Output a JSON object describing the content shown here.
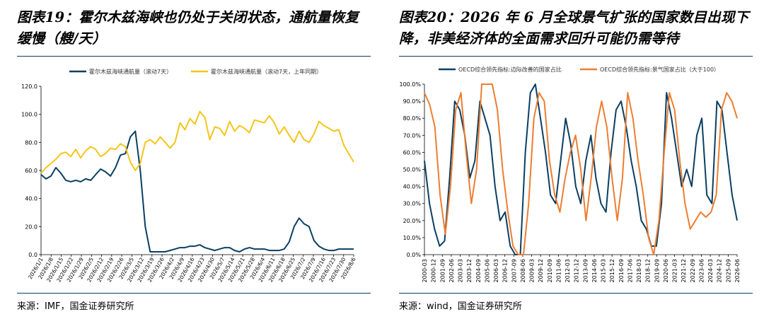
{
  "left": {
    "title_line1": "图表19：霍尔木兹海峡也仍处于关闭状态，通航量恢复",
    "title_line2": "缓慢（艘/天）",
    "source": "来源：IMF，国金证券研究所"
  },
  "right": {
    "title_line1": "图表20：2026 年 6 月全球景气扩张的国家数目出现下",
    "title_line2": "降，非美经济体的全面需求回升可能仍需等待",
    "source": "来源：wind，国金证券研究所"
  },
  "colors": {
    "navy": "#0a3f63",
    "gold": "#f5c518",
    "orange": "#ed7d31"
  },
  "chart_data": [
    {
      "type": "line",
      "ylim": [
        0,
        120
      ],
      "y_ticks": [
        "0.0",
        "20.0",
        "40.0",
        "60.0",
        "80.0",
        "100.0",
        "120.0"
      ],
      "x_ticks": [
        "2026/1/1",
        "2026/1/8",
        "2026/1/15",
        "2026/1/22",
        "2026/1/29",
        "2026/2/5",
        "2026/2/12",
        "2026/2/19",
        "2026/2/26",
        "2026/3/5",
        "2026/3/12",
        "2026/3/19",
        "2026/3/26",
        "2026/4/2",
        "2026/4/9",
        "2026/4/16",
        "2026/4/23",
        "2026/4/30",
        "2026/5/7",
        "2026/5/14",
        "2026/5/21",
        "2026/5/28",
        "2026/6/4",
        "2026/6/11",
        "2026/6/18",
        "2026/6/25",
        "2026/7/2",
        "2026/7/9",
        "2026/7/16",
        "2026/7/23",
        "2026/7/30",
        "2026/8/6"
      ],
      "legend_position": "top",
      "series": [
        {
          "name": "霍尔木兹海峡通航量（滚动7天）",
          "color": "#0a3f63",
          "values": [
            57,
            54,
            56,
            62,
            58,
            53,
            52,
            53,
            52,
            54,
            53,
            57,
            61,
            59,
            56,
            62,
            71,
            72,
            84,
            88,
            60,
            20,
            2,
            2,
            2,
            2,
            3,
            4,
            5,
            5,
            6,
            6,
            7,
            5,
            4,
            3,
            4,
            5,
            5,
            3,
            2,
            4,
            5,
            4,
            4,
            4,
            3,
            3,
            3,
            4,
            9,
            20,
            26,
            22,
            20,
            10,
            6,
            4,
            3,
            3,
            4,
            4,
            4,
            4
          ]
        },
        {
          "name": "霍尔木兹海峡通航量（滚动7天，上年同期）",
          "color": "#f5c518",
          "values": [
            58,
            62,
            65,
            68,
            72,
            73,
            70,
            75,
            69,
            74,
            77,
            75,
            70,
            72,
            76,
            75,
            79,
            77,
            66,
            60,
            65,
            80,
            82,
            79,
            84,
            80,
            76,
            80,
            94,
            89,
            97,
            93,
            102,
            98,
            82,
            91,
            90,
            85,
            95,
            88,
            92,
            90,
            87,
            96,
            95,
            94,
            99,
            94,
            86,
            91,
            85,
            80,
            88,
            82,
            80,
            86,
            95,
            92,
            90,
            88,
            89,
            78,
            72,
            66
          ]
        }
      ]
    },
    {
      "type": "line",
      "ylim": [
        0,
        100
      ],
      "y_ticks": [
        "0.0%",
        "10.0%",
        "20.0%",
        "30.0%",
        "40.0%",
        "50.0%",
        "60.0%",
        "70.0%",
        "80.0%",
        "90.0%",
        "100.0%"
      ],
      "x_ticks": [
        "2000-03",
        "2000-12",
        "2001-09",
        "2002-06",
        "2003-03",
        "2003-12",
        "2004-09",
        "2005-06",
        "2006-03",
        "2006-12",
        "2007-09",
        "2008-06",
        "2009-03",
        "2009-12",
        "2010-09",
        "2011-06",
        "2012-03",
        "2012-12",
        "2013-09",
        "2014-06",
        "2015-03",
        "2015-12",
        "2016-09",
        "2017-06",
        "2018-03",
        "2018-12",
        "2019-09",
        "2020-06",
        "2021-03",
        "2021-12",
        "2022-09",
        "2023-06",
        "2024-03",
        "2024-12",
        "2025-09",
        "2026-06"
      ],
      "legend_position": "top",
      "series": [
        {
          "name": "OECD综合领先指标:边际改善的国家占比",
          "color": "#0a3f63",
          "values": [
            55,
            30,
            15,
            5,
            8,
            45,
            90,
            85,
            70,
            45,
            55,
            90,
            80,
            70,
            40,
            20,
            25,
            5,
            0,
            0,
            60,
            95,
            100,
            80,
            60,
            35,
            30,
            55,
            80,
            65,
            40,
            30,
            55,
            70,
            45,
            30,
            25,
            60,
            85,
            90,
            75,
            55,
            40,
            20,
            15,
            5,
            5,
            30,
            95,
            80,
            60,
            40,
            50,
            40,
            70,
            80,
            35,
            30,
            90,
            85,
            60,
            35,
            20
          ]
        },
        {
          "name": "OECD综合领先指标:景气国家占比（大于100）",
          "color": "#ed7d31",
          "values": [
            95,
            88,
            75,
            35,
            12,
            40,
            85,
            95,
            60,
            30,
            50,
            100,
            100,
            100,
            85,
            50,
            25,
            5,
            0,
            0,
            30,
            80,
            95,
            90,
            55,
            35,
            25,
            45,
            60,
            70,
            50,
            20,
            45,
            75,
            90,
            75,
            45,
            20,
            45,
            95,
            80,
            55,
            35,
            10,
            0,
            20,
            60,
            95,
            85,
            55,
            30,
            15,
            20,
            25,
            22,
            25,
            35,
            85,
            95,
            90,
            80
          ]
        }
      ]
    }
  ]
}
